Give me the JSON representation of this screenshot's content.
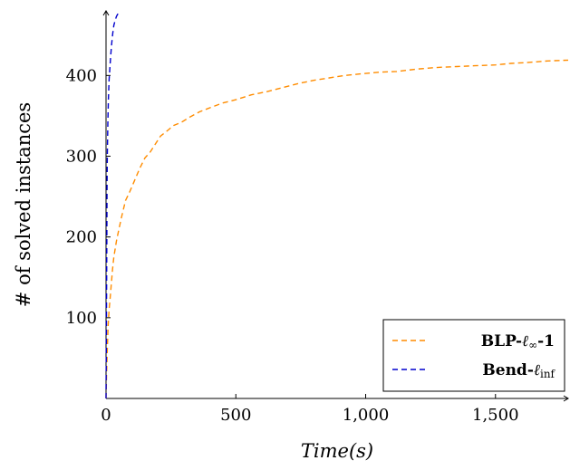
{
  "chart_data": {
    "type": "line",
    "title": "",
    "xlabel": "Time(s)",
    "ylabel": "# of solved instances",
    "xlim": [
      0,
      1780
    ],
    "ylim": [
      0,
      480
    ],
    "xticks": [
      0,
      500,
      1000,
      1500
    ],
    "xtick_labels": [
      "0",
      "500",
      "1,000",
      "1,500"
    ],
    "yticks": [
      100,
      200,
      300,
      400
    ],
    "ytick_labels": [
      "100",
      "200",
      "300",
      "400"
    ],
    "grid": false,
    "legend_position": "bottom-right",
    "series": [
      {
        "name": "BLP-ℓ∞-1",
        "color": "#ff8c00",
        "dash": "dashed",
        "x": [
          0,
          2,
          5,
          8,
          12,
          16,
          20,
          25,
          30,
          40,
          50,
          60,
          75,
          90,
          110,
          130,
          150,
          170,
          190,
          210,
          230,
          260,
          290,
          320,
          360,
          400,
          450,
          500,
          560,
          620,
          680,
          740,
          800,
          860,
          920,
          980,
          1050,
          1120,
          1200,
          1280,
          1350,
          1420,
          1500,
          1560,
          1620,
          1700,
          1780
        ],
        "y": [
          0,
          30,
          60,
          90,
          110,
          125,
          140,
          160,
          175,
          195,
          210,
          225,
          245,
          255,
          270,
          285,
          298,
          305,
          315,
          325,
          330,
          338,
          342,
          348,
          355,
          360,
          366,
          370,
          376,
          380,
          385,
          390,
          394,
          397,
          400,
          402,
          404,
          405,
          408,
          410,
          411,
          412,
          413,
          415,
          416,
          418,
          419
        ]
      },
      {
        "name": "Bend-ℓinf",
        "color": "#0000cd",
        "dash": "dashed",
        "x": [
          0,
          1,
          2,
          3,
          4,
          5,
          7,
          9,
          12,
          15,
          18,
          22,
          26,
          30,
          35,
          40,
          45,
          50
        ],
        "y": [
          0,
          60,
          130,
          200,
          260,
          300,
          340,
          370,
          395,
          410,
          425,
          440,
          452,
          462,
          468,
          473,
          476,
          480
        ]
      }
    ]
  },
  "legend": {
    "entries": [
      {
        "prefix": "BLP-",
        "symbol": "ℓ",
        "sub": "∞",
        "suffix": "-1"
      },
      {
        "prefix": "Bend-",
        "symbol": "ℓ",
        "sub": "inf",
        "suffix": ""
      }
    ]
  }
}
